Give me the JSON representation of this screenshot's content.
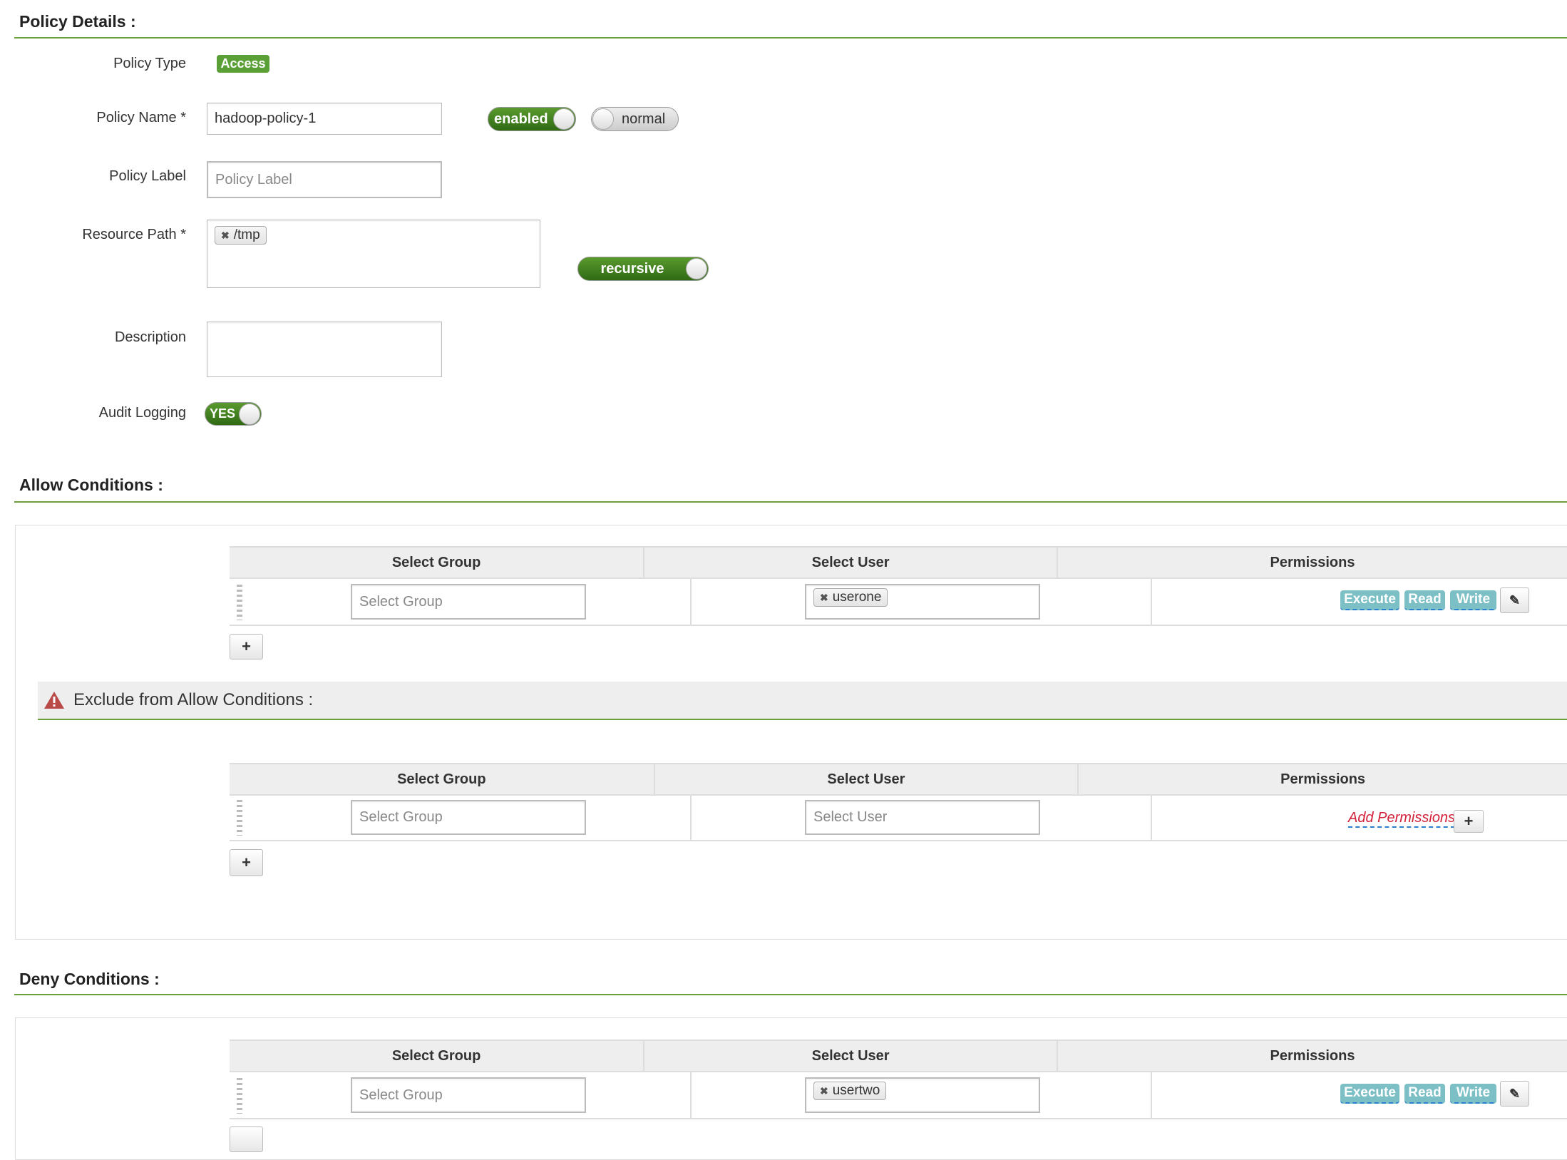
{
  "policy_details": {
    "title": "Policy Details :",
    "policy_type_label": "Policy Type",
    "policy_type_value": "Access",
    "policy_name_label": "Policy Name *",
    "policy_name_value": "hadoop-policy-1",
    "enabled_toggle": "enabled",
    "normal_toggle": "normal",
    "policy_label_label": "Policy Label",
    "policy_label_placeholder": "Policy Label",
    "resource_path_label": "Resource Path *",
    "resource_path_tags": [
      "/tmp"
    ],
    "recursive_toggle": "recursive",
    "description_label": "Description",
    "description_value": "",
    "audit_logging_label": "Audit Logging",
    "audit_logging_toggle": "YES"
  },
  "allow": {
    "title": "Allow Conditions :",
    "headers": [
      "Select Group",
      "Select User",
      "Permissions"
    ],
    "row": {
      "group_placeholder": "Select Group",
      "user_tag": "userone",
      "permissions": [
        "Execute",
        "Read",
        "Write"
      ]
    },
    "add_button": "+"
  },
  "exclude": {
    "title": "Exclude from Allow Conditions :",
    "headers": [
      "Select Group",
      "Select User",
      "Permissions"
    ],
    "row": {
      "group_placeholder": "Select Group",
      "user_placeholder": "Select User",
      "add_permissions": "Add Permissions"
    },
    "add_button": "+"
  },
  "deny": {
    "title": "Deny Conditions :",
    "headers": [
      "Select Group",
      "Select User",
      "Permissions"
    ],
    "row": {
      "group_placeholder": "Select Group",
      "user_tag": "usertwo",
      "permissions": [
        "Execute",
        "Read",
        "Write"
      ]
    }
  },
  "colors": {
    "accent_green": "#5aa036",
    "permission_tag": "#7cc0c6",
    "add_permissions": "#d3203a",
    "warning": "#b94a48"
  }
}
